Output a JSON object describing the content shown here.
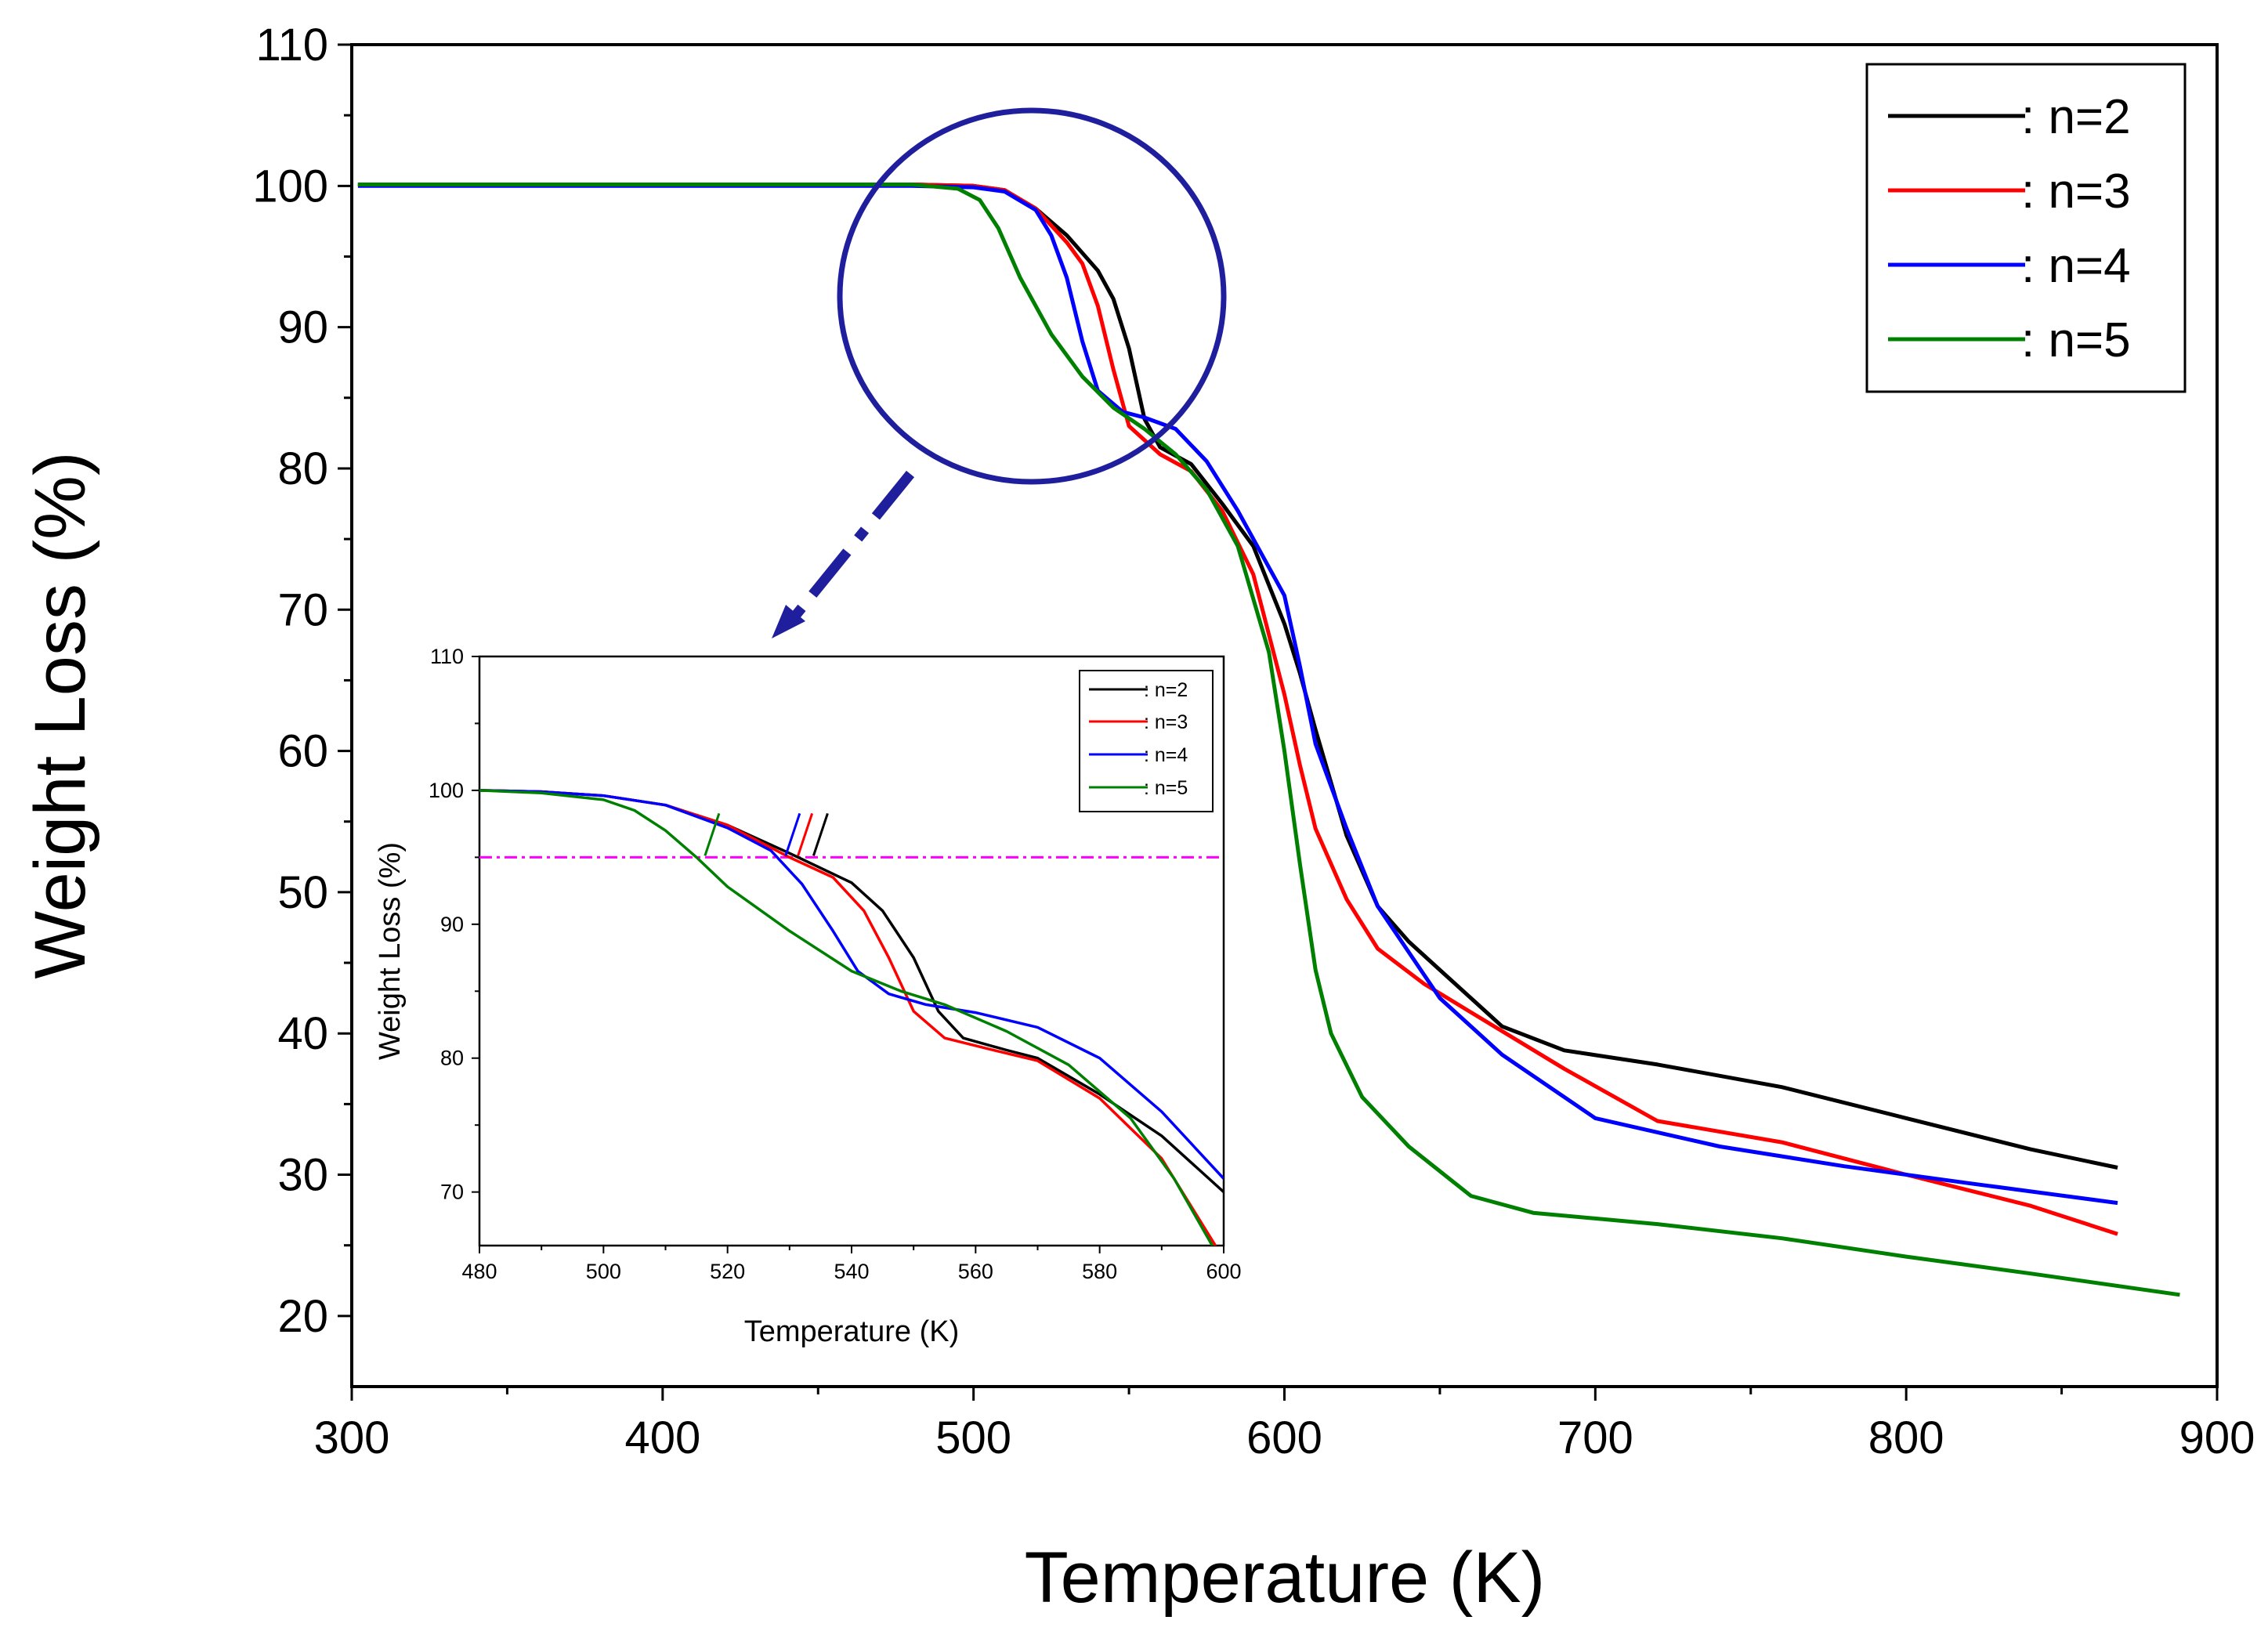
{
  "chart_data": [
    {
      "id": "main",
      "type": "line",
      "title": "",
      "xlabel": "Temperature (K)",
      "ylabel": "Weight Loss (%)",
      "xlim": [
        300,
        900
      ],
      "ylim": [
        15,
        110
      ],
      "xticks": [
        300,
        400,
        500,
        600,
        700,
        800,
        900
      ],
      "yticks": [
        20,
        30,
        40,
        50,
        60,
        70,
        80,
        90,
        100,
        110
      ],
      "grid": false,
      "legend_position": "top-right",
      "series": [
        {
          "name": ": n=2",
          "color": "#000000",
          "points": [
            [
              302,
              100.1
            ],
            [
              450,
              100.1
            ],
            [
              480,
              100.1
            ],
            [
              500,
              100.0
            ],
            [
              510,
              99.7
            ],
            [
              520,
              98.4
            ],
            [
              530,
              96.5
            ],
            [
              540,
              94.0
            ],
            [
              545,
              92.0
            ],
            [
              550,
              88.5
            ],
            [
              555,
              83.5
            ],
            [
              560,
              81.5
            ],
            [
              570,
              80.3
            ],
            [
              580,
              77.5
            ],
            [
              590,
              74.5
            ],
            [
              600,
              69.0
            ],
            [
              605,
              65.5
            ],
            [
              610,
              61.5
            ],
            [
              620,
              54.0
            ],
            [
              630,
              49.0
            ],
            [
              640,
              46.5
            ],
            [
              650,
              44.5
            ],
            [
              670,
              40.5
            ],
            [
              690,
              38.8
            ],
            [
              720,
              37.8
            ],
            [
              760,
              36.2
            ],
            [
              800,
              34.0
            ],
            [
              840,
              31.8
            ],
            [
              868,
              30.5
            ]
          ]
        },
        {
          "name": ": n=3",
          "color": "#ff0000",
          "points": [
            [
              302,
              100.1
            ],
            [
              450,
              100.1
            ],
            [
              480,
              100.1
            ],
            [
              500,
              100.0
            ],
            [
              510,
              99.7
            ],
            [
              520,
              98.4
            ],
            [
              530,
              96.0
            ],
            [
              535,
              94.5
            ],
            [
              540,
              91.5
            ],
            [
              545,
              87.0
            ],
            [
              550,
              83.0
            ],
            [
              560,
              81.0
            ],
            [
              570,
              79.8
            ],
            [
              580,
              77.0
            ],
            [
              590,
              72.5
            ],
            [
              600,
              64.0
            ],
            [
              605,
              59.0
            ],
            [
              610,
              54.5
            ],
            [
              620,
              49.5
            ],
            [
              630,
              46.0
            ],
            [
              645,
              43.5
            ],
            [
              660,
              41.5
            ],
            [
              690,
              37.5
            ],
            [
              720,
              33.8
            ],
            [
              760,
              32.3
            ],
            [
              800,
              30.0
            ],
            [
              840,
              27.8
            ],
            [
              868,
              25.8
            ]
          ]
        },
        {
          "name": ": n=4",
          "color": "#0000ff",
          "points": [
            [
              302,
              100.0
            ],
            [
              450,
              100.0
            ],
            [
              480,
              100.0
            ],
            [
              500,
              99.9
            ],
            [
              510,
              99.6
            ],
            [
              520,
              98.3
            ],
            [
              525,
              96.5
            ],
            [
              530,
              93.5
            ],
            [
              535,
              89.0
            ],
            [
              540,
              85.5
            ],
            [
              548,
              84.0
            ],
            [
              555,
              83.6
            ],
            [
              565,
              82.8
            ],
            [
              575,
              80.5
            ],
            [
              585,
              77.0
            ],
            [
              595,
              73.0
            ],
            [
              600,
              71.0
            ],
            [
              605,
              66.0
            ],
            [
              610,
              60.5
            ],
            [
              620,
              54.5
            ],
            [
              630,
              49.0
            ],
            [
              650,
              42.5
            ],
            [
              670,
              38.5
            ],
            [
              700,
              34.0
            ],
            [
              740,
              32.0
            ],
            [
              780,
              30.6
            ],
            [
              820,
              29.4
            ],
            [
              868,
              28.0
            ]
          ]
        },
        {
          "name": ": n=5",
          "color": "#008000",
          "points": [
            [
              302,
              100.1
            ],
            [
              450,
              100.1
            ],
            [
              480,
              100.1
            ],
            [
              495,
              99.8
            ],
            [
              502,
              99.0
            ],
            [
              508,
              97.0
            ],
            [
              515,
              93.5
            ],
            [
              525,
              89.5
            ],
            [
              535,
              86.5
            ],
            [
              545,
              84.3
            ],
            [
              555,
              82.8
            ],
            [
              565,
              81.0
            ],
            [
              575,
              78.5
            ],
            [
              585,
              74.5
            ],
            [
              595,
              67.0
            ],
            [
              600,
              60.0
            ],
            [
              605,
              52.0
            ],
            [
              610,
              44.5
            ],
            [
              615,
              40.0
            ],
            [
              625,
              35.5
            ],
            [
              640,
              32.0
            ],
            [
              660,
              28.5
            ],
            [
              680,
              27.3
            ],
            [
              720,
              26.5
            ],
            [
              760,
              25.5
            ],
            [
              800,
              24.2
            ],
            [
              840,
              23.0
            ],
            [
              888,
              21.5
            ]
          ]
        }
      ]
    },
    {
      "id": "inset",
      "type": "line",
      "title": "",
      "xlabel": "Temperature (K)",
      "ylabel": "Weight Loss (%)",
      "xlim": [
        480,
        600
      ],
      "ylim": [
        66,
        110
      ],
      "xticks": [
        480,
        500,
        520,
        540,
        560,
        580,
        600
      ],
      "yticks": [
        70,
        80,
        90,
        100,
        110
      ],
      "grid": false,
      "legend_position": "top-right",
      "threshold_line": {
        "y": 95,
        "color": "#ff00ff",
        "style": "dash-dot"
      },
      "onset_markers": [
        {
          "series": ": n=5",
          "x": 517.5,
          "color": "#008000"
        },
        {
          "series": ": n=4",
          "x": 530.5,
          "color": "#0000ff"
        },
        {
          "series": ": n=3",
          "x": 532.5,
          "color": "#ff0000"
        },
        {
          "series": ": n=2",
          "x": 535.0,
          "color": "#000000"
        }
      ],
      "series": [
        {
          "name": ": n=2",
          "color": "#000000",
          "points": [
            [
              480,
              100.0
            ],
            [
              490,
              99.9
            ],
            [
              500,
              99.6
            ],
            [
              510,
              98.9
            ],
            [
              520,
              97.4
            ],
            [
              530,
              95.3
            ],
            [
              540,
              93.1
            ],
            [
              545,
              91.0
            ],
            [
              550,
              87.5
            ],
            [
              554,
              83.5
            ],
            [
              558,
              81.5
            ],
            [
              565,
              80.6
            ],
            [
              570,
              80.0
            ],
            [
              580,
              77.3
            ],
            [
              590,
              74.2
            ],
            [
              600,
              70.0
            ]
          ]
        },
        {
          "name": ": n=3",
          "color": "#ff0000",
          "points": [
            [
              480,
              100.0
            ],
            [
              490,
              99.9
            ],
            [
              500,
              99.6
            ],
            [
              510,
              98.9
            ],
            [
              520,
              97.4
            ],
            [
              530,
              95.0
            ],
            [
              537,
              93.5
            ],
            [
              542,
              91.0
            ],
            [
              546,
              87.5
            ],
            [
              550,
              83.5
            ],
            [
              555,
              81.5
            ],
            [
              562,
              80.7
            ],
            [
              570,
              79.8
            ],
            [
              580,
              77.0
            ],
            [
              590,
              72.5
            ],
            [
              600,
              65.0
            ]
          ]
        },
        {
          "name": ": n=4",
          "color": "#0000ff",
          "points": [
            [
              480,
              100.0
            ],
            [
              490,
              99.9
            ],
            [
              500,
              99.6
            ],
            [
              510,
              98.9
            ],
            [
              520,
              97.2
            ],
            [
              527,
              95.5
            ],
            [
              532,
              93.0
            ],
            [
              537,
              89.5
            ],
            [
              541,
              86.5
            ],
            [
              546,
              84.8
            ],
            [
              552,
              84.0
            ],
            [
              560,
              83.4
            ],
            [
              570,
              82.3
            ],
            [
              580,
              80.0
            ],
            [
              590,
              76.0
            ],
            [
              600,
              71.0
            ]
          ]
        },
        {
          "name": ": n=5",
          "color": "#008000",
          "points": [
            [
              480,
              100.0
            ],
            [
              490,
              99.8
            ],
            [
              500,
              99.3
            ],
            [
              505,
              98.5
            ],
            [
              510,
              97.0
            ],
            [
              515,
              95.0
            ],
            [
              520,
              92.8
            ],
            [
              530,
              89.5
            ],
            [
              540,
              86.5
            ],
            [
              548,
              85.0
            ],
            [
              555,
              84.0
            ],
            [
              565,
              82.0
            ],
            [
              575,
              79.5
            ],
            [
              585,
              75.5
            ],
            [
              592,
              71.0
            ],
            [
              600,
              64.5
            ]
          ]
        }
      ]
    }
  ]
}
